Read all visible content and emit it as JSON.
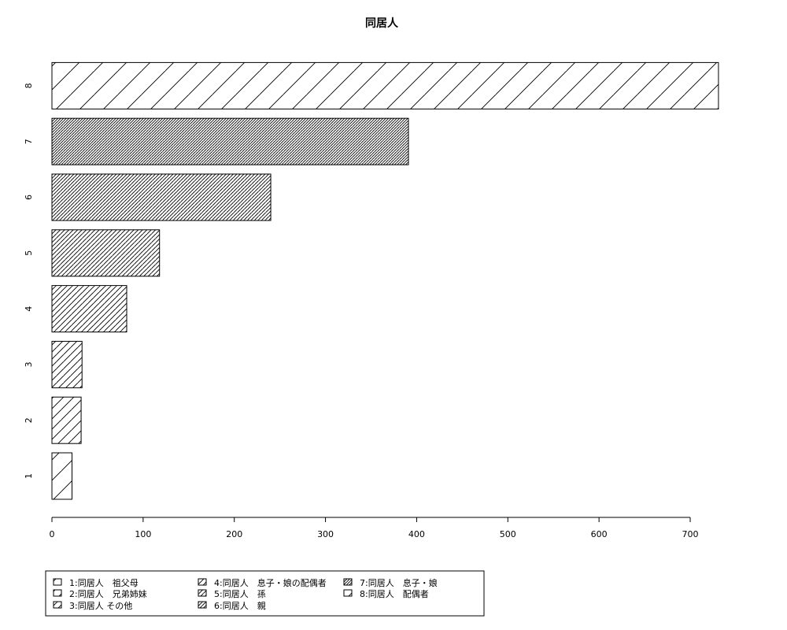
{
  "chart_data": {
    "type": "bar",
    "orientation": "horizontal",
    "title": "同居人",
    "categories": [
      "1",
      "2",
      "3",
      "4",
      "5",
      "6",
      "7",
      "8"
    ],
    "values": [
      22,
      32,
      33,
      82,
      118,
      240,
      391,
      731
    ],
    "xlim": [
      0,
      700
    ],
    "xticks": [
      0,
      100,
      200,
      300,
      400,
      500,
      600,
      700
    ],
    "grid": false,
    "legend_position": "bottom-left",
    "legend": [
      "1:同居人　祖父母",
      "2:同居人　兄弟姉妹",
      "3:同居人 その他",
      "4:同居人　息子・娘の配偶者",
      "5:同居人　孫",
      "6:同居人　親",
      "7:同居人　息子・娘",
      "8:同居人　配偶者"
    ]
  }
}
